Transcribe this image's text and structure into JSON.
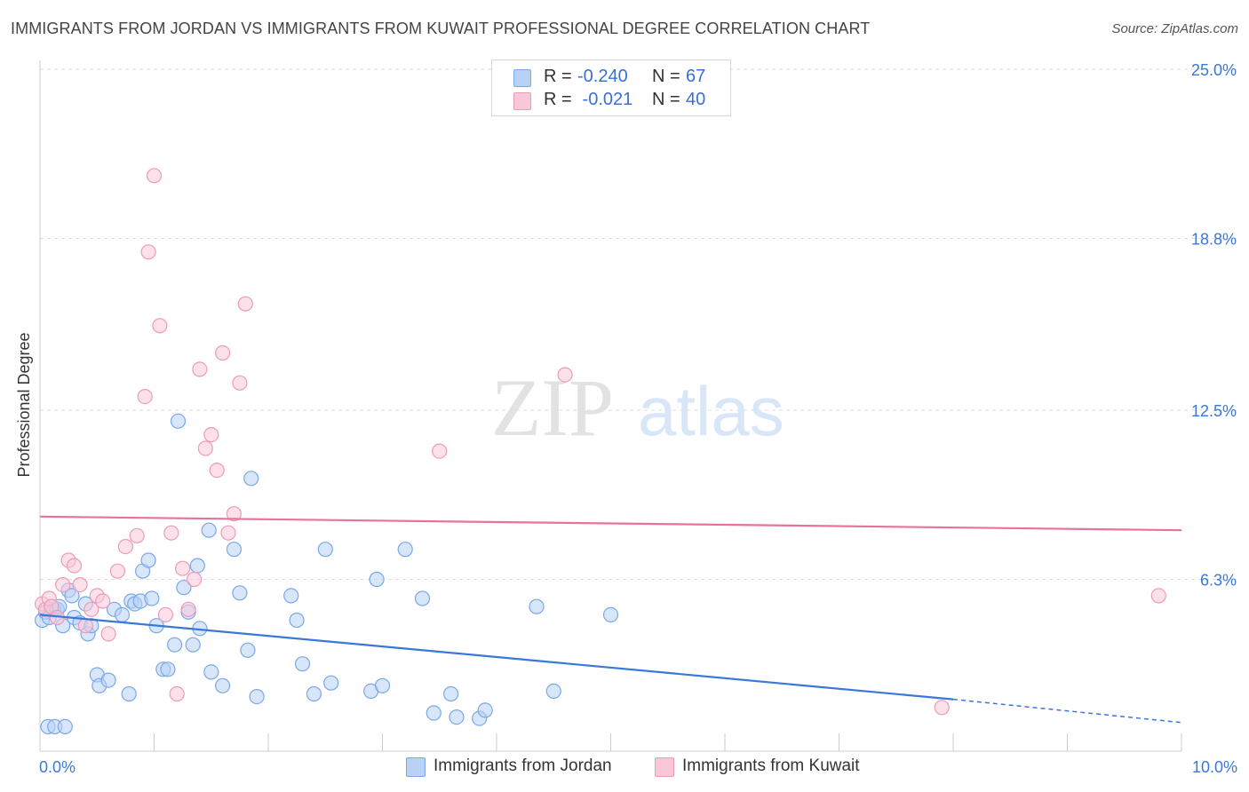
{
  "title": "IMMIGRANTS FROM JORDAN VS IMMIGRANTS FROM KUWAIT PROFESSIONAL DEGREE CORRELATION CHART",
  "source": "Source: ZipAtlas.com",
  "watermark": {
    "zip": "ZIP",
    "atlas": "atlas"
  },
  "stats": [
    {
      "r_label": "R =",
      "r_value": "-0.240",
      "n_label": "N =",
      "n_value": "67",
      "color": "#7aa7e8",
      "fill": "#b8d1f5"
    },
    {
      "r_label": "R =",
      "r_value": " -0.021",
      "n_label": "N =",
      "n_value": "40",
      "color": "#ef9ab8",
      "fill": "#f9c8d8"
    }
  ],
  "legend": [
    {
      "label": "Immigrants from Jordan",
      "fill": "#b8d1f5",
      "stroke": "#7aa7e8"
    },
    {
      "label": "Immigrants from Kuwait",
      "fill": "#f9c8d8",
      "stroke": "#ef9ab8"
    }
  ],
  "chart_data": {
    "type": "scatter",
    "title": "IMMIGRANTS FROM JORDAN VS IMMIGRANTS FROM KUWAIT PROFESSIONAL DEGREE CORRELATION CHART",
    "xlabel": "",
    "ylabel": "Professional Degree",
    "xlim": [
      0,
      10
    ],
    "ylim": [
      0,
      25
    ],
    "x_tick_labels": [
      {
        "value": 0,
        "label": "0.0%"
      },
      {
        "value": 10,
        "label": "10.0%"
      }
    ],
    "y_tick_labels": [
      {
        "value": 6.3,
        "label": "6.3%"
      },
      {
        "value": 12.5,
        "label": "12.5%"
      },
      {
        "value": 18.8,
        "label": "18.8%"
      },
      {
        "value": 25.0,
        "label": "25.0%"
      }
    ],
    "series": [
      {
        "name": "Immigrants from Jordan",
        "color": "#3a78d8",
        "fill": "#b8d1f5",
        "stroke": "#7aa7e8",
        "trend": {
          "x0": 0,
          "y0": 5.0,
          "x1": 8.0,
          "y1": 1.9,
          "dash_to_x": 10,
          "dash_to_y": 1.05
        },
        "points": [
          [
            0.02,
            4.8
          ],
          [
            0.05,
            5.1
          ],
          [
            0.08,
            4.9
          ],
          [
            0.1,
            5.3
          ],
          [
            0.12,
            5.2
          ],
          [
            0.15,
            5.2
          ],
          [
            0.2,
            4.6
          ],
          [
            0.25,
            5.9
          ],
          [
            0.3,
            4.9
          ],
          [
            0.35,
            4.7
          ],
          [
            0.4,
            5.4
          ],
          [
            0.42,
            4.3
          ],
          [
            0.45,
            4.6
          ],
          [
            0.5,
            2.8
          ],
          [
            0.52,
            2.4
          ],
          [
            0.6,
            2.6
          ],
          [
            0.65,
            5.2
          ],
          [
            0.72,
            5.0
          ],
          [
            0.78,
            2.1
          ],
          [
            0.8,
            5.5
          ],
          [
            0.83,
            5.4
          ],
          [
            0.88,
            5.5
          ],
          [
            0.9,
            6.6
          ],
          [
            0.95,
            7.0
          ],
          [
            0.98,
            5.6
          ],
          [
            1.02,
            4.6
          ],
          [
            1.08,
            3.0
          ],
          [
            1.12,
            3.0
          ],
          [
            1.18,
            3.9
          ],
          [
            1.21,
            12.1
          ],
          [
            1.26,
            6.0
          ],
          [
            1.3,
            5.1
          ],
          [
            1.34,
            3.9
          ],
          [
            1.38,
            6.8
          ],
          [
            1.4,
            4.5
          ],
          [
            1.48,
            8.1
          ],
          [
            1.5,
            2.9
          ],
          [
            1.6,
            2.4
          ],
          [
            1.7,
            7.4
          ],
          [
            1.75,
            5.8
          ],
          [
            1.82,
            3.7
          ],
          [
            1.85,
            10.0
          ],
          [
            1.9,
            2.0
          ],
          [
            2.2,
            5.7
          ],
          [
            2.25,
            4.8
          ],
          [
            2.3,
            3.2
          ],
          [
            2.4,
            2.1
          ],
          [
            2.5,
            7.4
          ],
          [
            2.55,
            2.5
          ],
          [
            2.9,
            2.2
          ],
          [
            2.95,
            6.3
          ],
          [
            3.0,
            2.4
          ],
          [
            3.2,
            7.4
          ],
          [
            3.35,
            5.6
          ],
          [
            3.45,
            1.4
          ],
          [
            3.6,
            2.1
          ],
          [
            3.65,
            1.25
          ],
          [
            3.85,
            1.2
          ],
          [
            3.9,
            1.5
          ],
          [
            4.35,
            5.3
          ],
          [
            4.5,
            2.2
          ],
          [
            5.0,
            5.0
          ],
          [
            0.07,
            0.9
          ],
          [
            0.13,
            0.9
          ],
          [
            0.22,
            0.9
          ],
          [
            0.17,
            5.3
          ],
          [
            0.28,
            5.7
          ]
        ]
      },
      {
        "name": "Immigrants from Kuwait",
        "color": "#e8739a",
        "fill": "#f9c8d8",
        "stroke": "#ef9ab8",
        "trend": {
          "x0": 0,
          "y0": 8.6,
          "x1": 10,
          "y1": 8.1
        },
        "points": [
          [
            0.02,
            5.4
          ],
          [
            0.05,
            5.2
          ],
          [
            0.08,
            5.6
          ],
          [
            0.1,
            5.3
          ],
          [
            0.15,
            4.9
          ],
          [
            0.2,
            6.1
          ],
          [
            0.25,
            7.0
          ],
          [
            0.3,
            6.8
          ],
          [
            0.35,
            6.1
          ],
          [
            0.4,
            4.6
          ],
          [
            0.45,
            5.2
          ],
          [
            0.5,
            5.7
          ],
          [
            0.55,
            5.5
          ],
          [
            0.6,
            4.3
          ],
          [
            0.68,
            6.6
          ],
          [
            0.75,
            7.5
          ],
          [
            0.85,
            7.9
          ],
          [
            0.92,
            13.0
          ],
          [
            0.95,
            18.3
          ],
          [
            1.0,
            21.1
          ],
          [
            1.05,
            15.6
          ],
          [
            1.1,
            5.0
          ],
          [
            1.15,
            8.0
          ],
          [
            1.2,
            2.1
          ],
          [
            1.25,
            6.7
          ],
          [
            1.3,
            5.2
          ],
          [
            1.35,
            6.3
          ],
          [
            1.4,
            14.0
          ],
          [
            1.45,
            11.1
          ],
          [
            1.5,
            11.6
          ],
          [
            1.55,
            10.3
          ],
          [
            1.6,
            14.6
          ],
          [
            1.65,
            8.0
          ],
          [
            1.7,
            8.7
          ],
          [
            1.75,
            13.5
          ],
          [
            1.8,
            16.4
          ],
          [
            3.5,
            11.0
          ],
          [
            4.6,
            13.8
          ],
          [
            7.9,
            1.6
          ],
          [
            9.8,
            5.7
          ]
        ]
      }
    ]
  }
}
